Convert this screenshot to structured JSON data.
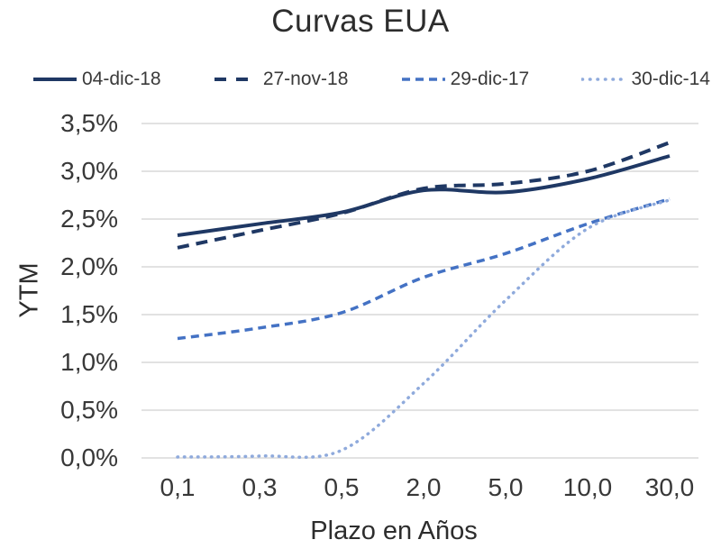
{
  "chart_data": {
    "type": "line",
    "title": "Curvas EUA",
    "xlabel": "Plazo en Años",
    "ylabel": "YTM",
    "categories": [
      "0,1",
      "0,3",
      "0,5",
      "2,0",
      "5,0",
      "10,0",
      "30,0"
    ],
    "y_ticks": [
      "3,5%",
      "3,0%",
      "2,5%",
      "2,0%",
      "1,5%",
      "1,0%",
      "0,5%",
      "0,0%"
    ],
    "ylim": [
      0,
      3.5
    ],
    "y_unit": "%",
    "grid": "horizontal",
    "grid_color": "#D9D9D9",
    "background": "#FFFFFF",
    "legend_position": "top",
    "smoothed_lines": true,
    "series": [
      {
        "name": "04-dic-18",
        "color": "#1F3864",
        "style": "solid",
        "width": 4,
        "values": [
          2.33,
          2.45,
          2.57,
          2.8,
          2.78,
          2.92,
          3.16
        ]
      },
      {
        "name": "27-nov-18",
        "color": "#1F3864",
        "style": "dashed",
        "dash": "13 8",
        "legend_dash": "13 11",
        "width": 4,
        "values": [
          2.2,
          2.38,
          2.56,
          2.82,
          2.87,
          3.0,
          3.3
        ]
      },
      {
        "name": "29-dic-17",
        "color": "#4472C4",
        "style": "dashed",
        "dash": "9 6",
        "legend_dash": "9 6",
        "width": 3.5,
        "values": [
          1.25,
          1.36,
          1.52,
          1.89,
          2.14,
          2.45,
          2.71
        ]
      },
      {
        "name": "30-dic-14",
        "color": "#8FAADC",
        "style": "dotted",
        "dash": "0.5 7",
        "legend_dash": "0.5 8",
        "width": 3.5,
        "values": [
          0.01,
          0.02,
          0.08,
          0.78,
          1.65,
          2.4,
          2.7
        ]
      }
    ]
  }
}
